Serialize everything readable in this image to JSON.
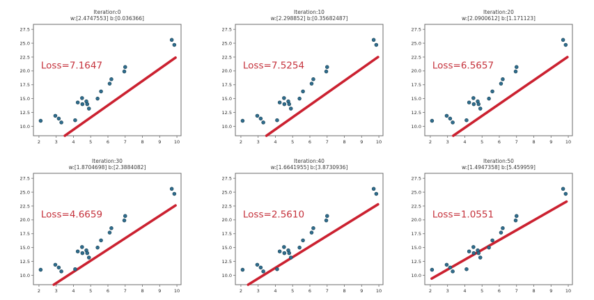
{
  "figure": {
    "background": "#ffffff",
    "line_color": "#cb2130",
    "loss_text_color": "#c5323c",
    "point_color": "#2e6d8e",
    "point_edge_color": "#1c4356",
    "axis_color": "#6a6a6a",
    "tick_label_color": "#2b2b2b",
    "title_color": "#3a3a3a"
  },
  "chart_data": {
    "type": "scatter",
    "layout": "2-rows-3-cols",
    "description_visible_text_only": true,
    "shared": {
      "points": [
        [
          2.1,
          11.0
        ],
        [
          2.95,
          11.9
        ],
        [
          3.15,
          11.4
        ],
        [
          3.3,
          10.7
        ],
        [
          4.1,
          11.1
        ],
        [
          4.25,
          14.3
        ],
        [
          4.5,
          15.1
        ],
        [
          4.52,
          14.0
        ],
        [
          4.75,
          14.5
        ],
        [
          4.8,
          14.0
        ],
        [
          4.9,
          13.2
        ],
        [
          5.4,
          15.0
        ],
        [
          5.6,
          16.3
        ],
        [
          6.1,
          17.7
        ],
        [
          6.2,
          18.5
        ],
        [
          6.95,
          19.9
        ],
        [
          7.0,
          20.7
        ],
        [
          9.7,
          25.6
        ],
        [
          9.85,
          24.7
        ]
      ],
      "xlim": [
        1.68,
        10.24
      ],
      "ylim": [
        8.3,
        28.4
      ],
      "x_ticks": [
        2,
        3,
        4,
        5,
        6,
        7,
        8,
        9,
        10
      ],
      "x_tick_labels": [
        "2",
        "3",
        "4",
        "5",
        "6",
        "7",
        "8",
        "9",
        "10"
      ],
      "y_ticks": [
        10,
        12.5,
        15,
        17.5,
        20,
        22.5,
        25,
        27.5
      ],
      "y_tick_labels": [
        "10.0",
        "12.5",
        "15.0",
        "17.5",
        "20.0",
        "22.5",
        "25.0",
        "27.5"
      ],
      "grid": false,
      "loss_text_anchor": [
        2.12,
        20.4
      ]
    },
    "subplots": [
      {
        "iteration": 0,
        "title_line1": "Iteration:0",
        "title_line2": "w:[2.4747553] b:[0.036366]",
        "w": 2.4747553,
        "b": 0.036366,
        "loss": 7.1647,
        "loss_label": "Loss=7.1647",
        "line_segment": {
          "x1": 3.5,
          "y1": 8.3,
          "x2": 9.92,
          "y2": 22.4
        }
      },
      {
        "iteration": 10,
        "title_line1": "Iteration:10",
        "title_line2": "w:[2.298852] b:[0.35682487]",
        "w": 2.298852,
        "b": 0.35682487,
        "loss": 7.5254,
        "loss_label": "Loss=7.5254",
        "line_segment": {
          "x1": 3.48,
          "y1": 8.3,
          "x2": 9.95,
          "y2": 22.5
        }
      },
      {
        "iteration": 20,
        "title_line1": "Iteration:20",
        "title_line2": "w:[2.0900612] b:[1.171123]",
        "w": 2.0900612,
        "b": 1.171123,
        "loss": 6.5657,
        "loss_label": "Loss=6.5657",
        "line_segment": {
          "x1": 3.33,
          "y1": 8.3,
          "x2": 9.95,
          "y2": 22.5
        }
      },
      {
        "iteration": 30,
        "title_line1": "Iteration:30",
        "title_line2": "w:[1.8704698] b:[2.3884082]",
        "w": 1.8704698,
        "b": 2.3884082,
        "loss": 4.6659,
        "loss_label": "Loss=4.6659",
        "line_segment": {
          "x1": 2.86,
          "y1": 8.3,
          "x2": 9.92,
          "y2": 22.6
        }
      },
      {
        "iteration": 40,
        "title_line1": "Iteration:40",
        "title_line2": "w:[1.6641955] b:[3.8730936]",
        "w": 1.6641955,
        "b": 3.8730936,
        "loss": 2.561,
        "loss_label": "Loss=2.5610",
        "line_segment": {
          "x1": 2.42,
          "y1": 8.3,
          "x2": 9.95,
          "y2": 22.8
        }
      },
      {
        "iteration": 50,
        "title_line1": "Iteration:50",
        "title_line2": "w:[1.4947358] b:[5.459959]",
        "w": 1.4947358,
        "b": 5.459959,
        "loss": 1.0551,
        "loss_label": "Loss=1.0551",
        "line_segment": {
          "x1": 2.08,
          "y1": 9.4,
          "x2": 9.9,
          "y2": 23.3
        }
      }
    ]
  }
}
